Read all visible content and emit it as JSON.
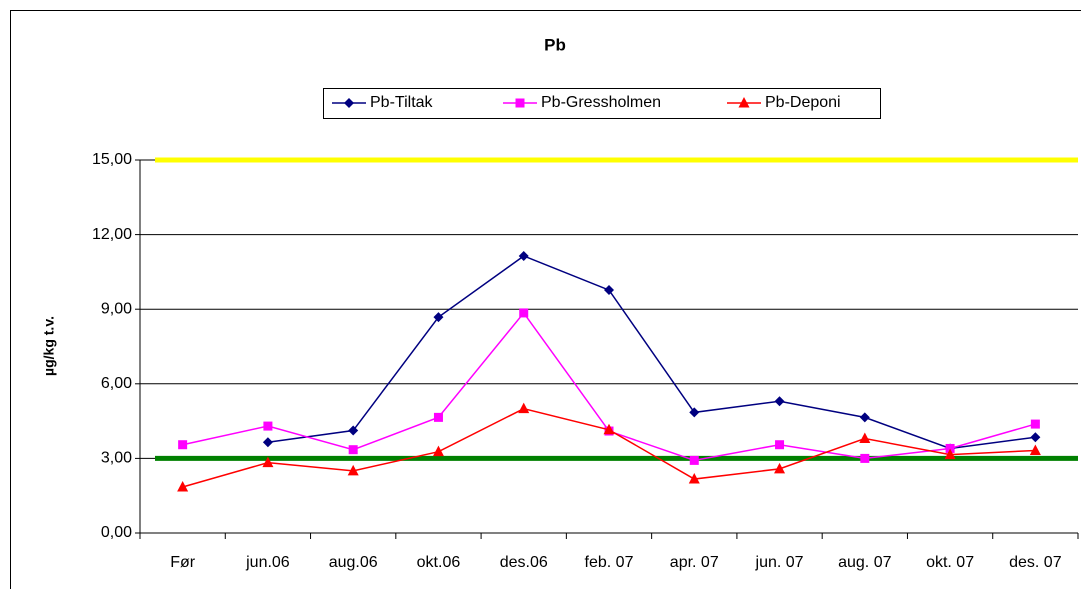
{
  "chart_data": {
    "type": "line",
    "title": "Pb",
    "y_label": "µg/kg t.v.",
    "categories": [
      "Før",
      "jun.06",
      "aug.06",
      "okt.06",
      "des.06",
      "feb. 07",
      "apr. 07",
      "jun. 07",
      "aug. 07",
      "okt. 07",
      "des. 07"
    ],
    "series": [
      {
        "name": "Pb-Tiltak",
        "color": "#000080",
        "marker": "diamond",
        "values": [
          null,
          3.65,
          4.12,
          8.68,
          11.14,
          9.77,
          4.85,
          5.3,
          4.65,
          3.4,
          3.85
        ]
      },
      {
        "name": "Pb-Gressholmen",
        "color": "#ff00ff",
        "marker": "square",
        "values": [
          3.55,
          4.3,
          3.35,
          4.65,
          8.85,
          4.1,
          2.92,
          3.55,
          3.0,
          3.4,
          4.38
        ]
      },
      {
        "name": "Pb-Deponi",
        "color": "#ff0000",
        "marker": "triangle",
        "values": [
          1.85,
          2.83,
          2.5,
          3.27,
          5.0,
          4.15,
          2.17,
          2.58,
          3.8,
          3.15,
          3.32
        ]
      }
    ],
    "reference_lines": [
      {
        "value": 15,
        "color": "#ffff00"
      },
      {
        "value": 3,
        "color": "#008000"
      }
    ],
    "ylim": [
      0,
      15
    ],
    "yticks": [
      {
        "value": 0,
        "label": "0,00"
      },
      {
        "value": 3,
        "label": "3,00"
      },
      {
        "value": 6,
        "label": "6,00"
      },
      {
        "value": 9,
        "label": "9,00"
      },
      {
        "value": 12,
        "label": "12,00"
      },
      {
        "value": 15,
        "label": "15,00"
      }
    ],
    "grid": true,
    "legend": "top"
  }
}
